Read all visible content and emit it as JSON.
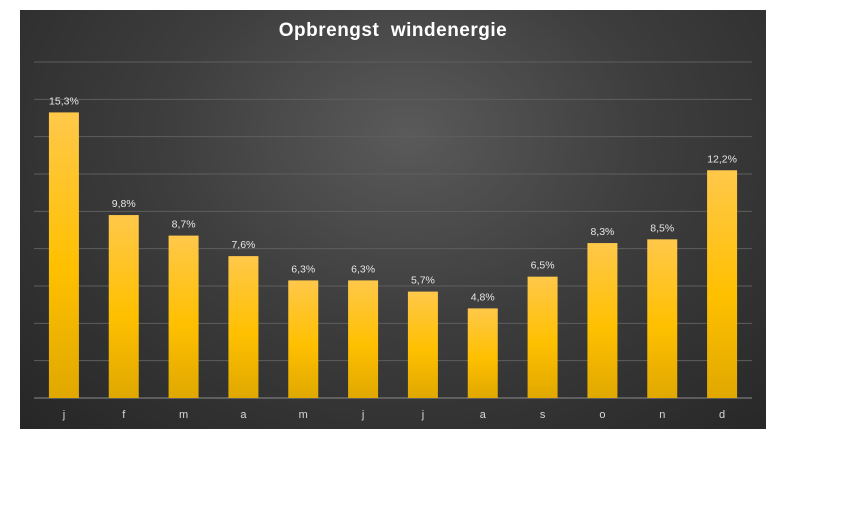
{
  "chart_data": {
    "type": "bar",
    "title": "Opbrengst  windenergie",
    "categories": [
      "j",
      "f",
      "m",
      "a",
      "m",
      "j",
      "j",
      "a",
      "s",
      "o",
      "n",
      "d"
    ],
    "values": [
      15.3,
      9.8,
      8.7,
      7.6,
      6.3,
      6.3,
      5.7,
      4.8,
      6.5,
      8.3,
      8.5,
      12.2
    ],
    "data_labels": [
      "15,3%",
      "9,8%",
      "8,7%",
      "7,6%",
      "6,3%",
      "6,3%",
      "5,7%",
      "4,8%",
      "6,5%",
      "8,3%",
      "8,5%",
      "12,2%"
    ],
    "xlabel": "",
    "ylabel": "",
    "ylim": [
      0,
      18
    ],
    "gridlines": true,
    "legend": false,
    "bar_color": "#ffc000",
    "background": "#3d3d3d"
  }
}
